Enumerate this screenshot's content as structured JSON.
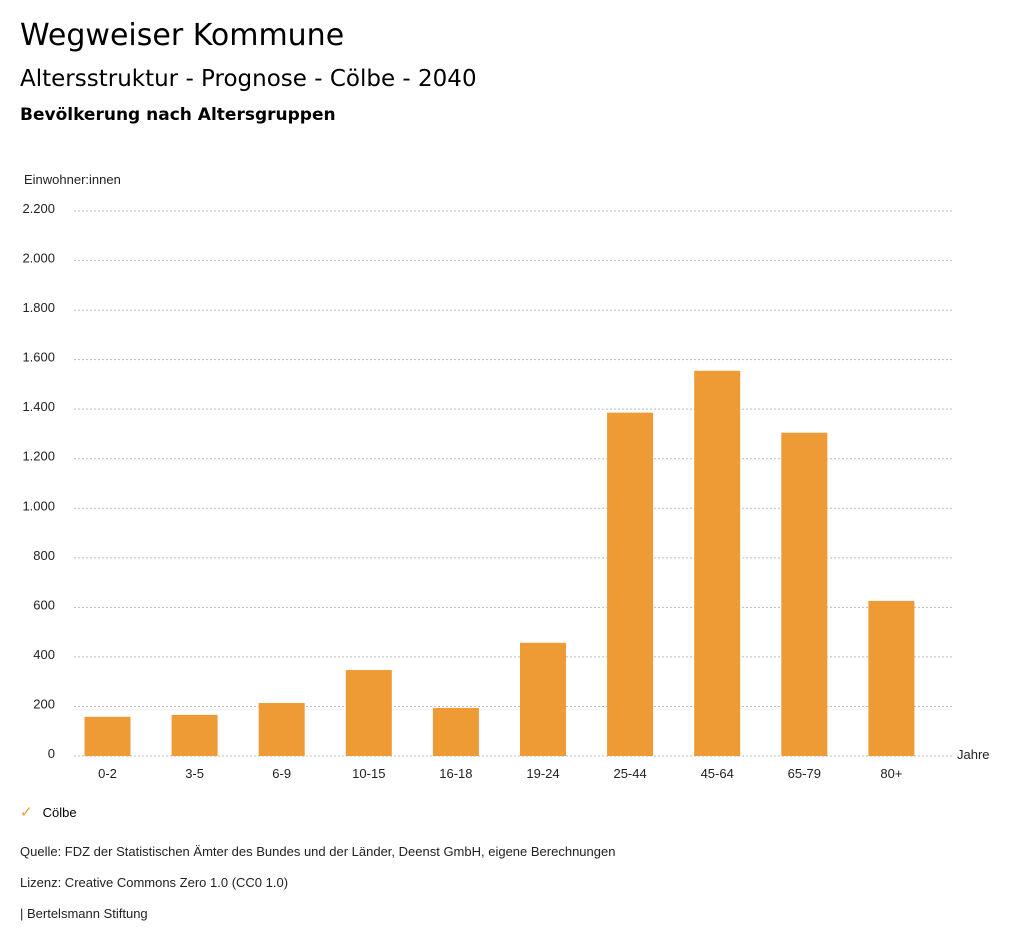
{
  "header": {
    "title": "Wegweiser Kommune",
    "subtitle": "Altersstruktur - Prognose - Cölbe - 2040",
    "chart_heading": "Bevölkerung nach Altersgruppen"
  },
  "chart_data": {
    "type": "bar",
    "title": "Bevölkerung nach Altersgruppen",
    "ylabel": "Einwohner:innen",
    "xlabel": "Jahre",
    "ylim": [
      0,
      2200
    ],
    "yticks": [
      0,
      200,
      400,
      600,
      800,
      1000,
      1200,
      1400,
      1600,
      1800,
      2000,
      2200
    ],
    "ytick_labels": [
      "0",
      "200",
      "400",
      "600",
      "800",
      "1.000",
      "1.200",
      "1.400",
      "1.600",
      "1.800",
      "2.000",
      "2.200"
    ],
    "grid": true,
    "categories": [
      "0-2",
      "3-5",
      "6-9",
      "10-15",
      "16-18",
      "19-24",
      "25-44",
      "45-64",
      "65-79",
      "80+"
    ],
    "series": [
      {
        "name": "Cölbe",
        "color": "#ee9a35",
        "values": [
          158,
          166,
          214,
          347,
          194,
          457,
          1386,
          1555,
          1305,
          626
        ]
      }
    ],
    "legend": "bottom-left"
  },
  "legend": {
    "check_icon": "check-icon",
    "label": "Cölbe"
  },
  "footer": {
    "source": "Quelle: FDZ der Statistischen Ämter des Bundes und der Länder, Deenst GmbH, eigene Berechnungen",
    "license": "Lizenz: Creative Commons Zero 1.0 (CC0 1.0)",
    "publisher": "| Bertelsmann Stiftung"
  }
}
